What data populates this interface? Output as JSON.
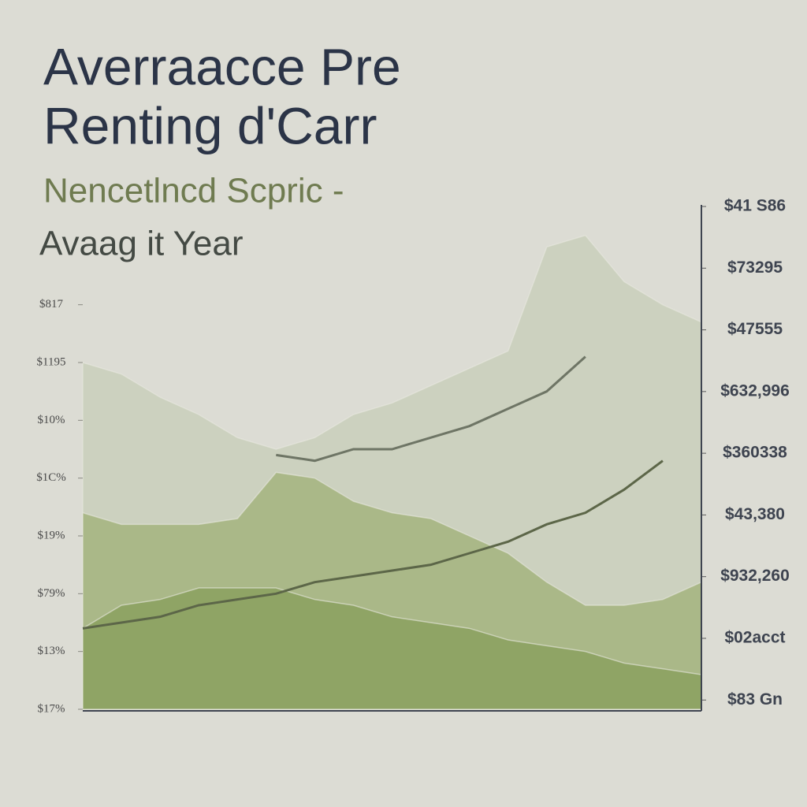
{
  "chart_data": {
    "type": "area",
    "title": "Averraacce Pre",
    "title_line2": "Renting d'Carr",
    "subtitle": "Nencetlncd Scpric -",
    "subtitle_line2": "Avaag it Year",
    "categories": [
      null,
      null,
      null,
      null,
      null,
      null,
      null,
      null,
      null,
      null,
      null,
      null,
      null,
      null,
      null,
      null,
      null
    ],
    "ylim": [
      0,
      8.7
    ],
    "yticks": [
      {
        "value": 0,
        "label": "$17%"
      },
      {
        "value": 1,
        "label": "$13%"
      },
      {
        "value": 2,
        "label": "$79%"
      },
      {
        "value": 3,
        "label": "$19%"
      },
      {
        "value": 4,
        "label": "$1C%"
      },
      {
        "value": 5,
        "label": "$10%"
      },
      {
        "value": 6,
        "label": "$1195"
      },
      {
        "value": 7,
        "label": "$817"
      }
    ],
    "y2lim": [
      -0.15,
      8
    ],
    "y2ticks": [
      {
        "value": 0,
        "label": "$83 Gn"
      },
      {
        "value": 1,
        "label": "$02acct"
      },
      {
        "value": 2,
        "label": "$932,260"
      },
      {
        "value": 3,
        "label": "$43,380"
      },
      {
        "value": 4,
        "label": "$360338"
      },
      {
        "value": 5,
        "label": "$632,996"
      },
      {
        "value": 6,
        "label": "$47555"
      },
      {
        "value": 7,
        "label": "$73295"
      },
      {
        "value": 8,
        "label": "$41 S86"
      }
    ],
    "series": [
      {
        "type": "area",
        "color": "#ccd1bf",
        "values": [
          6.0,
          5.8,
          5.4,
          5.1,
          4.7,
          4.5,
          4.7,
          5.1,
          5.3,
          5.6,
          5.9,
          6.2,
          8.0,
          8.2,
          7.4,
          7.0,
          6.7
        ]
      },
      {
        "type": "area",
        "color": "#aab888",
        "values": [
          3.4,
          3.2,
          3.2,
          3.2,
          3.3,
          4.1,
          4.0,
          3.6,
          3.4,
          3.3,
          3.0,
          2.7,
          2.2,
          1.8,
          1.8,
          1.9,
          2.2
        ]
      },
      {
        "type": "area",
        "color": "#8fa465",
        "values": [
          1.4,
          1.8,
          1.9,
          2.1,
          2.1,
          2.1,
          1.9,
          1.8,
          1.6,
          1.5,
          1.4,
          1.2,
          1.1,
          1.0,
          0.8,
          0.7,
          0.6
        ]
      },
      {
        "type": "line",
        "color": "#5c6648",
        "values": [
          1.4,
          1.5,
          1.6,
          1.8,
          1.9,
          2.0,
          2.2,
          2.3,
          2.4,
          2.5,
          2.7,
          2.9,
          3.2,
          3.4,
          3.8,
          4.3,
          null
        ]
      },
      {
        "type": "line",
        "color": "#6e7565",
        "values": [
          null,
          null,
          null,
          null,
          null,
          4.4,
          4.3,
          4.5,
          4.5,
          4.7,
          4.9,
          5.2,
          5.5,
          6.1,
          null,
          null,
          null
        ]
      }
    ]
  }
}
